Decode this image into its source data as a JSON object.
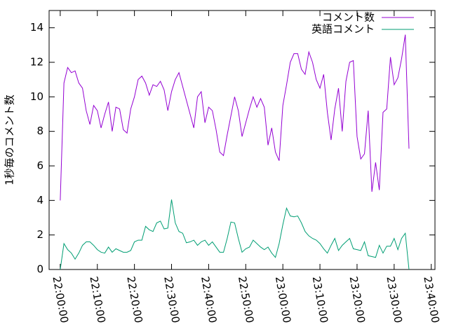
{
  "chart_data": {
    "type": "line",
    "ylabel": "1秒毎のコメント数",
    "x": [
      "22:00:00",
      "22:01:00",
      "22:02:00",
      "22:03:00",
      "22:04:00",
      "22:05:00",
      "22:06:00",
      "22:07:00",
      "22:08:00",
      "22:09:00",
      "22:10:00",
      "22:11:00",
      "22:12:00",
      "22:13:00",
      "22:14:00",
      "22:15:00",
      "22:16:00",
      "22:17:00",
      "22:18:00",
      "22:19:00",
      "22:20:00",
      "22:21:00",
      "22:22:00",
      "22:23:00",
      "22:24:00",
      "22:25:00",
      "22:26:00",
      "22:27:00",
      "22:28:00",
      "22:29:00",
      "22:30:00",
      "22:31:00",
      "22:32:00",
      "22:33:00",
      "22:34:00",
      "22:35:00",
      "22:36:00",
      "22:37:00",
      "22:38:00",
      "22:39:00",
      "22:40:00",
      "22:41:00",
      "22:42:00",
      "22:43:00",
      "22:44:00",
      "22:45:00",
      "22:46:00",
      "22:47:00",
      "22:48:00",
      "22:49:00",
      "22:50:00",
      "22:51:00",
      "22:52:00",
      "22:53:00",
      "22:54:00",
      "22:55:00",
      "22:56:00",
      "22:57:00",
      "22:58:00",
      "22:59:00",
      "23:00:00",
      "23:01:00",
      "23:02:00",
      "23:03:00",
      "23:04:00",
      "23:05:00",
      "23:06:00",
      "23:07:00",
      "23:08:00",
      "23:09:00",
      "23:10:00",
      "23:11:00",
      "23:12:00",
      "23:13:00",
      "23:14:00",
      "23:15:00",
      "23:16:00",
      "23:17:00",
      "23:18:00",
      "23:19:00",
      "23:20:00",
      "23:21:00",
      "23:22:00",
      "23:23:00",
      "23:24:00",
      "23:25:00",
      "23:26:00",
      "23:27:00",
      "23:28:00",
      "23:29:00",
      "23:30:00",
      "23:31:00",
      "23:32:00",
      "23:33:00",
      "23:34:00"
    ],
    "series": [
      {
        "name": "コメント数",
        "color": "#9400d3",
        "values": [
          4.0,
          10.8,
          11.7,
          11.4,
          11.5,
          10.8,
          10.5,
          9.2,
          8.4,
          9.5,
          9.2,
          8.2,
          9.0,
          9.7,
          8.0,
          9.4,
          9.3,
          8.1,
          7.9,
          9.3,
          10.0,
          11.0,
          11.2,
          10.8,
          10.1,
          10.7,
          10.6,
          10.9,
          10.4,
          9.2,
          10.3,
          11.0,
          11.4,
          10.6,
          9.8,
          9.0,
          8.2,
          10.0,
          10.3,
          8.5,
          9.4,
          9.2,
          8.1,
          6.8,
          6.6,
          7.8,
          8.9,
          10.0,
          9.2,
          7.7,
          8.5,
          9.3,
          10.0,
          9.4,
          9.9,
          9.4,
          7.2,
          8.2,
          6.8,
          6.3,
          9.5,
          10.7,
          12.0,
          12.5,
          12.5,
          11.6,
          11.3,
          12.6,
          12.0,
          11.0,
          10.5,
          11.3,
          9.1,
          7.5,
          9.3,
          10.5,
          8.0,
          10.9,
          12.0,
          12.1,
          7.7,
          6.4,
          6.7,
          9.2,
          4.5,
          6.2,
          4.6,
          9.1,
          9.3,
          12.3,
          10.7,
          11.1,
          12.2,
          13.6,
          7.0
        ]
      },
      {
        "name": "英語コメント",
        "color": "#009e73",
        "values": [
          0,
          1.5,
          1.15,
          0.95,
          0.6,
          0.95,
          1.4,
          1.6,
          1.6,
          1.4,
          1.15,
          1.0,
          0.95,
          1.3,
          1.0,
          1.2,
          1.1,
          1.0,
          1.0,
          1.1,
          1.6,
          1.7,
          1.7,
          2.5,
          2.3,
          2.2,
          2.7,
          2.8,
          2.35,
          2.4,
          4.05,
          2.7,
          2.2,
          2.1,
          1.55,
          1.6,
          1.7,
          1.4,
          1.6,
          1.7,
          1.4,
          1.6,
          1.3,
          1.0,
          1.0,
          1.8,
          2.75,
          2.7,
          1.8,
          1.0,
          1.2,
          1.3,
          1.7,
          1.5,
          1.3,
          1.15,
          1.3,
          0.95,
          0.7,
          1.5,
          2.6,
          3.55,
          3.1,
          3.05,
          3.1,
          2.7,
          2.2,
          1.95,
          1.8,
          1.7,
          1.5,
          1.2,
          0.95,
          1.4,
          1.8,
          1.1,
          1.4,
          1.6,
          1.8,
          1.2,
          1.15,
          1.1,
          1.6,
          0.8,
          0.75,
          0.7,
          1.4,
          0.95,
          1.35,
          1.35,
          1.8,
          1.15,
          1.8,
          2.1,
          0
        ]
      }
    ],
    "xlim": [
      "21:57:00",
      "23:41:00"
    ],
    "xticks": [
      "22:00:00",
      "22:10:00",
      "22:20:00",
      "22:30:00",
      "22:40:00",
      "22:50:00",
      "23:00:00",
      "23:10:00",
      "23:20:00",
      "23:30:00",
      "23:40:00"
    ],
    "ylim": [
      0,
      15
    ],
    "yticks": [
      0,
      2,
      4,
      6,
      8,
      10,
      12,
      14
    ],
    "legend": "top-right"
  }
}
